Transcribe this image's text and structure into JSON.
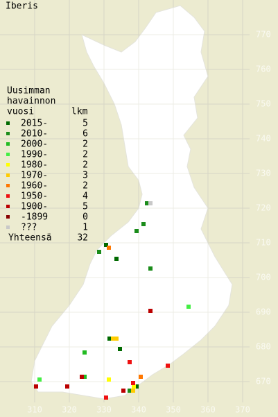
{
  "title": "Iberis",
  "legend": {
    "title_lines": [
      "Uusimman",
      "havainnon",
      "vuosi"
    ],
    "count_header": "lkm",
    "classes": [
      {
        "label": "2015-",
        "count": 5,
        "color": "#006a00",
        "points": [
          [
            330.6,
            709.4
          ],
          [
            333.6,
            705.4
          ],
          [
            331.6,
            682.4
          ],
          [
            334.6,
            679.4
          ],
          [
            339.4,
            668.6
          ]
        ]
      },
      {
        "label": "2010-",
        "count": 6,
        "color": "#1a8c1a",
        "points": [
          [
            342.4,
            721.4
          ],
          [
            341.4,
            715.4
          ],
          [
            339.4,
            713.4
          ],
          [
            328.6,
            707.4
          ],
          [
            343.4,
            702.6
          ],
          [
            337.4,
            667.4
          ]
        ]
      },
      {
        "label": "2000-",
        "count": 2,
        "color": "#22bb22",
        "points": [
          [
            324.4,
            678.4
          ],
          [
            324.4,
            671.4
          ]
        ]
      },
      {
        "label": "1990-",
        "count": 2,
        "color": "#44ee44",
        "points": [
          [
            354.4,
            691.6
          ],
          [
            311.4,
            670.6
          ]
        ]
      },
      {
        "label": "1980-",
        "count": 2,
        "color": "#ffff00",
        "points": [
          [
            331.4,
            670.6
          ],
          [
            338.6,
            668.6
          ]
        ]
      },
      {
        "label": "1970-",
        "count": 3,
        "color": "#ffcc00",
        "points": [
          [
            332.6,
            682.4
          ],
          [
            333.6,
            682.4
          ],
          [
            338.4,
            667.4
          ]
        ]
      },
      {
        "label": "1960-",
        "count": 2,
        "color": "#ff7700",
        "points": [
          [
            331.4,
            708.6
          ],
          [
            340.6,
            671.4
          ]
        ]
      },
      {
        "label": "1950-",
        "count": 4,
        "color": "#ee1111",
        "points": [
          [
            337.4,
            675.6
          ],
          [
            348.4,
            674.6
          ],
          [
            338.4,
            669.6
          ],
          [
            330.6,
            665.4
          ]
        ]
      },
      {
        "label": "1900-",
        "count": 5,
        "color": "#bb0000",
        "points": [
          [
            343.4,
            690.4
          ],
          [
            323.6,
            671.4
          ],
          [
            310.4,
            668.6
          ],
          [
            319.4,
            668.6
          ],
          [
            335.6,
            667.4
          ]
        ]
      },
      {
        "label": "-1899",
        "count": 0,
        "color": "#880000",
        "points": []
      },
      {
        "label": "???",
        "count": 1,
        "color": "#c8c8c8",
        "points": [
          [
            343.4,
            721.4
          ]
        ]
      }
    ],
    "total_label": "Yhteensä",
    "total": 32
  },
  "map": {
    "xlim": [
      300,
      380
    ],
    "ylim": [
      660,
      780
    ],
    "xticks": [
      310,
      320,
      330,
      340,
      350,
      360,
      370
    ],
    "yticks": [
      670,
      680,
      690,
      700,
      710,
      720,
      730,
      740,
      750,
      760,
      770
    ]
  }
}
